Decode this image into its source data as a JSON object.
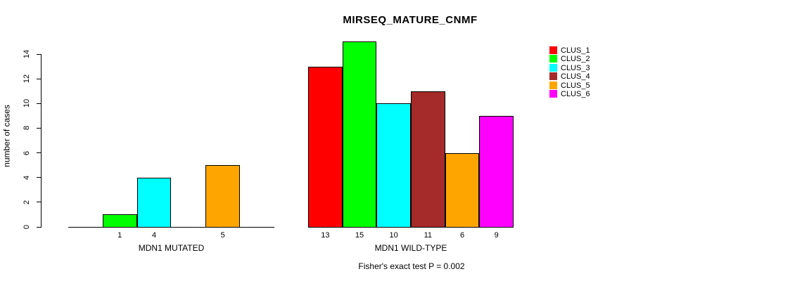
{
  "chart_data": {
    "type": "bar",
    "title": "MIRSEQ_MATURE_CNMF",
    "ylabel": "number of cases",
    "xlabel": "",
    "ylim": [
      0,
      14
    ],
    "yticks": [
      0,
      2,
      4,
      6,
      8,
      10,
      12,
      14
    ],
    "grid": false,
    "note": "Fisher's exact test P = 0.002",
    "series_colors": [
      "#FF0000",
      "#00FF00",
      "#00FFFF",
      "#A52A2A",
      "#FFA500",
      "#FF00FF"
    ],
    "series_names": [
      "CLUS_1",
      "CLUS_2",
      "CLUS_3",
      "CLUS_4",
      "CLUS_5",
      "CLUS_6"
    ],
    "groups": [
      {
        "label": "MDN1 MUTATED",
        "values": [
          0,
          1,
          4,
          0,
          5,
          0
        ],
        "bar_labels": [
          "",
          "1",
          "4",
          "",
          "5",
          ""
        ]
      },
      {
        "label": "MDN1 WILD-TYPE",
        "values": [
          13,
          15,
          10,
          11,
          6,
          9
        ],
        "bar_labels": [
          "13",
          "15",
          "10",
          "11",
          "6",
          "9"
        ]
      }
    ],
    "legend": {
      "position": "right",
      "entries": [
        {
          "label": "CLUS_1",
          "color": "#FF0000"
        },
        {
          "label": "CLUS_2",
          "color": "#00FF00"
        },
        {
          "label": "CLUS_3",
          "color": "#00FFFF"
        },
        {
          "label": "CLUS_4",
          "color": "#A52A2A"
        },
        {
          "label": "CLUS_5",
          "color": "#FFA500"
        },
        {
          "label": "CLUS_6",
          "color": "#FF00FF"
        }
      ]
    }
  },
  "colors": {
    "background": "#FFFFFF",
    "axis": "#000000",
    "text": "#000000"
  }
}
